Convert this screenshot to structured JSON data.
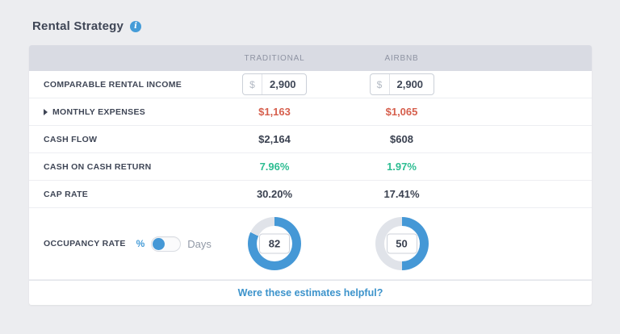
{
  "title": {
    "text": "Rental Strategy"
  },
  "icons": {
    "info_icon": "i",
    "expand_caret_icon": "triangle-right"
  },
  "table": {
    "columns": [
      "TRADITIONAL",
      "AIRBNB"
    ],
    "rows": [
      {
        "label": "COMPARABLE RENTAL INCOME",
        "type": "currency-input",
        "currency": "$",
        "values": [
          "2,900",
          "2,900"
        ]
      },
      {
        "label": "MONTHLY EXPENSES",
        "expandable": true,
        "color": "red",
        "values": [
          "$1,163",
          "$1,065"
        ]
      },
      {
        "label": "CASH FLOW",
        "color": "dark",
        "values": [
          "$2,164",
          "$608"
        ]
      },
      {
        "label": "CASH ON CASH RETURN",
        "color": "green",
        "values": [
          "7.96%",
          "1.97%"
        ]
      },
      {
        "label": "CAP RATE",
        "color": "dark",
        "values": [
          "30.20%",
          "17.41%"
        ]
      }
    ],
    "occupancy": {
      "label": "OCCUPANCY RATE",
      "toggle": {
        "left": "%",
        "right": "Days",
        "selected": "%"
      },
      "values": [
        82,
        50
      ]
    }
  },
  "footer": {
    "link": "Were these estimates helpful?"
  },
  "chart_data": {
    "type": "pie",
    "title": "Occupancy Rate",
    "series": [
      {
        "name": "Traditional occupancy %",
        "values": [
          82,
          18
        ]
      },
      {
        "name": "Airbnb occupancy %",
        "values": [
          50,
          50
        ]
      }
    ],
    "categories": [
      "occupied",
      "vacant"
    ]
  },
  "colors": {
    "accent_blue": "#4598d6",
    "link_blue": "#3c93cb",
    "negative_red": "#d65f4d",
    "positive_green": "#2dbd92",
    "donut_track": "#e0e3e9",
    "header_bg": "#d9dbe3",
    "page_bg": "#ecedf0"
  }
}
